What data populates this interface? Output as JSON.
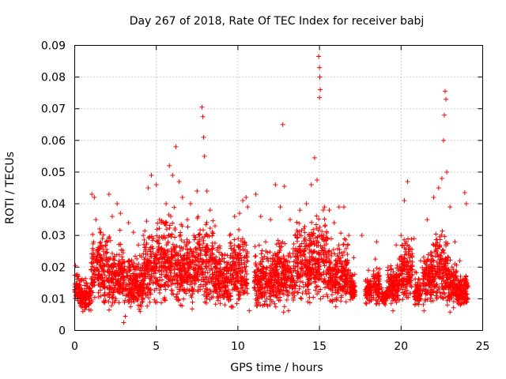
{
  "chart_data": {
    "type": "scatter",
    "title": "Day 267 of 2018, Rate Of TEC Index for receiver babj",
    "xlabel": "GPS time / hours",
    "ylabel": "ROTI / TECUs",
    "xlim": [
      0,
      25
    ],
    "ylim": [
      0,
      0.09
    ],
    "x_ticks": [
      "0",
      "5",
      "10",
      "15",
      "20",
      "25"
    ],
    "y_ticks": [
      "0",
      "0.01",
      "0.02",
      "0.03",
      "0.04",
      "0.05",
      "0.06",
      "0.07",
      "0.08",
      "0.09"
    ],
    "grid": true,
    "marker": "plus",
    "color": "#ff0000",
    "series": [
      {
        "name": "ROTI",
        "points": [
          [
            0.05,
            0.0205
          ],
          [
            0.2,
            0.017
          ],
          [
            0.4,
            0.012
          ],
          [
            0.6,
            0.008
          ],
          [
            0.8,
            0.014
          ],
          [
            1.05,
            0.043
          ],
          [
            1.2,
            0.042
          ],
          [
            1.3,
            0.035
          ],
          [
            1.7,
            0.029
          ],
          [
            1.9,
            0.027
          ],
          [
            2.1,
            0.043
          ],
          [
            2.3,
            0.036
          ],
          [
            2.6,
            0.04
          ],
          [
            2.8,
            0.037
          ],
          [
            3.0,
            0.0025
          ],
          [
            3.3,
            0.034
          ],
          [
            3.6,
            0.031
          ],
          [
            3.9,
            0.027
          ],
          [
            4.2,
            0.03
          ],
          [
            4.5,
            0.045
          ],
          [
            4.7,
            0.049
          ],
          [
            5.0,
            0.046
          ],
          [
            5.2,
            0.035
          ],
          [
            5.4,
            0.029
          ],
          [
            5.6,
            0.04
          ],
          [
            5.8,
            0.052
          ],
          [
            6.0,
            0.049
          ],
          [
            6.2,
            0.058
          ],
          [
            6.4,
            0.047
          ],
          [
            6.6,
            0.042
          ],
          [
            6.9,
            0.035
          ],
          [
            7.1,
            0.04
          ],
          [
            7.3,
            0.03
          ],
          [
            7.5,
            0.044
          ],
          [
            7.8,
            0.0705
          ],
          [
            7.85,
            0.0675
          ],
          [
            7.9,
            0.061
          ],
          [
            7.95,
            0.055
          ],
          [
            8.1,
            0.044
          ],
          [
            8.3,
            0.038
          ],
          [
            8.6,
            0.033
          ],
          [
            8.9,
            0.026
          ],
          [
            9.2,
            0.024
          ],
          [
            9.5,
            0.03
          ],
          [
            9.8,
            0.036
          ],
          [
            10.1,
            0.037
          ],
          [
            10.3,
            0.041
          ],
          [
            10.5,
            0.042
          ],
          [
            10.6,
            0.039
          ],
          [
            11.1,
            0.043
          ],
          [
            11.4,
            0.036
          ],
          [
            11.7,
            0.028
          ],
          [
            12.0,
            0.035
          ],
          [
            12.3,
            0.046
          ],
          [
            12.6,
            0.039
          ],
          [
            12.75,
            0.065
          ],
          [
            12.85,
            0.0455
          ],
          [
            13.2,
            0.035
          ],
          [
            13.5,
            0.03
          ],
          [
            13.8,
            0.038
          ],
          [
            14.2,
            0.04
          ],
          [
            14.5,
            0.046
          ],
          [
            14.7,
            0.0545
          ],
          [
            14.85,
            0.0475
          ],
          [
            14.95,
            0.0865
          ],
          [
            15.0,
            0.083
          ],
          [
            15.02,
            0.08
          ],
          [
            15.05,
            0.076
          ],
          [
            15.0,
            0.0735
          ],
          [
            15.3,
            0.039
          ],
          [
            15.6,
            0.038
          ],
          [
            15.9,
            0.034
          ],
          [
            16.2,
            0.039
          ],
          [
            16.5,
            0.039
          ],
          [
            16.8,
            0.03
          ],
          [
            17.1,
            0.023
          ],
          [
            17.6,
            0.03
          ],
          [
            18.0,
            0.019
          ],
          [
            18.5,
            0.028
          ],
          [
            18.8,
            0.0135
          ],
          [
            19.2,
            0.02
          ],
          [
            19.7,
            0.027
          ],
          [
            20.0,
            0.03
          ],
          [
            20.2,
            0.041
          ],
          [
            20.4,
            0.047
          ],
          [
            20.8,
            0.029
          ],
          [
            21.2,
            0.022
          ],
          [
            21.6,
            0.035
          ],
          [
            22.0,
            0.042
          ],
          [
            22.3,
            0.045
          ],
          [
            22.5,
            0.048
          ],
          [
            22.6,
            0.06
          ],
          [
            22.65,
            0.068
          ],
          [
            22.7,
            0.0755
          ],
          [
            22.75,
            0.073
          ],
          [
            22.8,
            0.05
          ],
          [
            23.0,
            0.039
          ],
          [
            23.3,
            0.028
          ],
          [
            23.6,
            0.022
          ],
          [
            23.9,
            0.0435
          ],
          [
            24.0,
            0.04
          ],
          [
            24.1,
            0.014
          ],
          [
            12.8,
            0.0058
          ],
          [
            13.1,
            0.0062
          ],
          [
            16.0,
            0.0075
          ],
          [
            19.5,
            0.0062
          ],
          [
            21.4,
            0.0062
          ],
          [
            23.0,
            0.0058
          ],
          [
            0.5,
            0.006
          ],
          [
            3.1,
            0.0045
          ],
          [
            7.2,
            0.0068
          ],
          [
            10.7,
            0.0062
          ]
        ],
        "dense_band": [
          [
            0.0,
            0.3,
            0.008,
            0.02
          ],
          [
            0.3,
            1.0,
            0.006,
            0.018
          ],
          [
            1.0,
            2.0,
            0.008,
            0.035
          ],
          [
            2.0,
            3.0,
            0.006,
            0.033
          ],
          [
            3.0,
            4.2,
            0.005,
            0.028
          ],
          [
            4.2,
            5.0,
            0.007,
            0.036
          ],
          [
            5.0,
            6.2,
            0.008,
            0.042
          ],
          [
            6.2,
            7.5,
            0.007,
            0.038
          ],
          [
            7.5,
            8.5,
            0.007,
            0.04
          ],
          [
            8.5,
            9.5,
            0.007,
            0.028
          ],
          [
            9.5,
            10.6,
            0.006,
            0.036
          ],
          [
            11.0,
            12.2,
            0.006,
            0.03
          ],
          [
            12.2,
            13.5,
            0.007,
            0.032
          ],
          [
            13.5,
            14.5,
            0.008,
            0.038
          ],
          [
            14.5,
            15.5,
            0.009,
            0.042
          ],
          [
            15.5,
            16.8,
            0.008,
            0.032
          ],
          [
            16.8,
            17.2,
            0.009,
            0.02
          ],
          [
            17.8,
            18.2,
            0.008,
            0.018
          ],
          [
            18.3,
            18.7,
            0.007,
            0.024
          ],
          [
            18.8,
            19.1,
            0.008,
            0.014
          ],
          [
            19.1,
            19.9,
            0.008,
            0.022
          ],
          [
            19.9,
            20.7,
            0.009,
            0.033
          ],
          [
            20.8,
            21.2,
            0.007,
            0.02
          ],
          [
            21.3,
            22.0,
            0.007,
            0.03
          ],
          [
            22.0,
            22.9,
            0.007,
            0.036
          ],
          [
            22.9,
            23.4,
            0.006,
            0.026
          ],
          [
            23.4,
            24.1,
            0.007,
            0.02
          ]
        ]
      }
    ]
  }
}
